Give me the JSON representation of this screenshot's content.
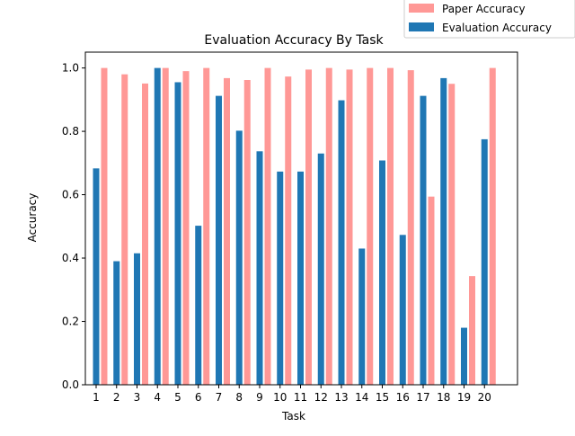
{
  "chart_data": {
    "type": "bar",
    "title": "Evaluation Accuracy By Task",
    "xlabel": "Task",
    "ylabel": "Accuracy",
    "ylim": [
      0,
      1.05
    ],
    "yticks": [
      "0.0",
      "0.2",
      "0.4",
      "0.6",
      "0.8",
      "1.0"
    ],
    "grid": false,
    "legend_position": "top-right",
    "categories": [
      "1",
      "2",
      "3",
      "4",
      "5",
      "6",
      "7",
      "8",
      "9",
      "10",
      "11",
      "12",
      "13",
      "14",
      "15",
      "16",
      "17",
      "18",
      "19",
      "20"
    ],
    "series": [
      {
        "name": "Evaluation Accuracy",
        "color": "#1f77b4",
        "values": [
          0.683,
          0.39,
          0.415,
          1.0,
          0.955,
          0.502,
          0.912,
          0.802,
          0.737,
          0.673,
          0.673,
          0.73,
          0.898,
          0.43,
          0.708,
          0.473,
          0.912,
          0.968,
          0.18,
          0.775
        ]
      },
      {
        "name": "Paper Accuracy",
        "color": "#ff9896",
        "values": [
          1.0,
          0.98,
          0.951,
          1.0,
          0.99,
          1.0,
          0.968,
          0.962,
          1.0,
          0.973,
          0.995,
          1.0,
          0.995,
          1.0,
          1.0,
          0.993,
          0.594,
          0.95,
          0.343,
          1.0
        ]
      }
    ],
    "legend": [
      {
        "label": "Paper Accuracy",
        "color": "#ff9896"
      },
      {
        "label": "Evaluation Accuracy",
        "color": "#1f77b4"
      }
    ]
  }
}
